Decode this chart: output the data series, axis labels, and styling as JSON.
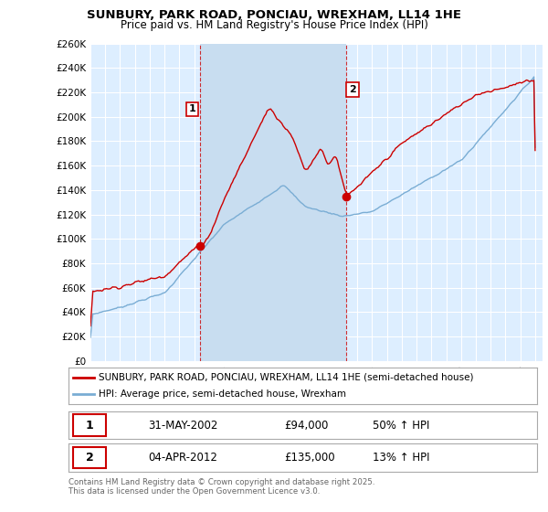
{
  "title": "SUNBURY, PARK ROAD, PONCIAU, WREXHAM, LL14 1HE",
  "subtitle": "Price paid vs. HM Land Registry's House Price Index (HPI)",
  "red_label": "SUNBURY, PARK ROAD, PONCIAU, WREXHAM, LL14 1HE (semi-detached house)",
  "blue_label": "HPI: Average price, semi-detached house, Wrexham",
  "transaction1_date": "31-MAY-2002",
  "transaction1_price": 94000,
  "transaction1_hpi": "50% ↑ HPI",
  "transaction2_date": "04-APR-2012",
  "transaction2_price": 135000,
  "transaction2_hpi": "13% ↑ HPI",
  "red_color": "#cc0000",
  "blue_color": "#7aadd4",
  "bg_color": "#ddeeff",
  "highlight_color": "#c8ddf0",
  "grid_color": "#ffffff",
  "ylim": [
    0,
    260000
  ],
  "start_year": 1995,
  "end_year": 2025,
  "marker1_year": 2002.42,
  "marker2_year": 2012.25,
  "copyright": "Contains HM Land Registry data © Crown copyright and database right 2025.\nThis data is licensed under the Open Government Licence v3.0."
}
